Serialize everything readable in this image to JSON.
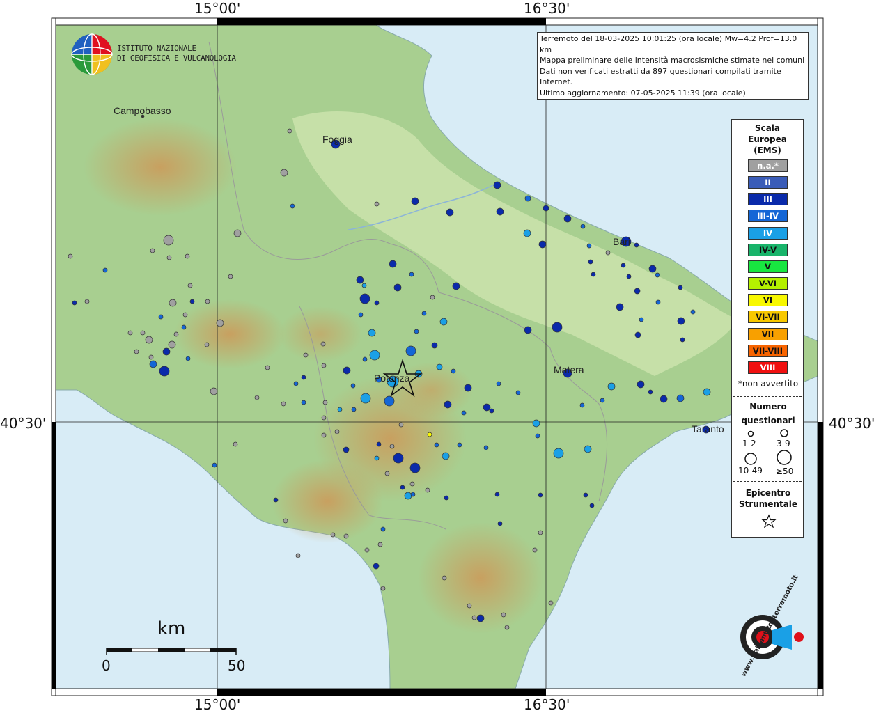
{
  "coordinates": {
    "top_left": "15°00'",
    "top_right": "16°30'",
    "bottom_left": "15°00'",
    "bottom_right": "16°30'",
    "left": "40°30'",
    "right": "40°30'"
  },
  "institution": {
    "line1": "ISTITUTO NAZIONALE",
    "line2": "DI GEOFISICA E VULCANOLOGIA"
  },
  "info": {
    "line1": "Terremoto del 18-03-2025 10:01:25 (ora locale) Mw=4.2 Prof=13.0 km",
    "line2": "Mappa preliminare delle intensità macrosismiche stimate nei comuni",
    "line3": "Dati non verificati estratti da 897 questionari compilati tramite Internet.",
    "line4": "Ultimo aggiornamento: 07-05-2025 11:39 (ora locale)"
  },
  "cities": [
    {
      "name": "Campobasso"
    },
    {
      "name": "Foggia"
    },
    {
      "name": "Bari"
    },
    {
      "name": "Potenza"
    },
    {
      "name": "Matera"
    },
    {
      "name": "Taranto"
    }
  ],
  "legend": {
    "title1": "Scala",
    "title2": "Europea",
    "title3": "(EMS)",
    "levels": [
      {
        "label": "n.a.*",
        "color": "#a0a0a0",
        "text": "#ffffff"
      },
      {
        "label": "II",
        "color": "#3a5cb8",
        "text": "#ffffff"
      },
      {
        "label": "III",
        "color": "#0a2aaa",
        "text": "#ffffff"
      },
      {
        "label": "III-IV",
        "color": "#1466d6",
        "text": "#ffffff"
      },
      {
        "label": "IV",
        "color": "#1aa0e6",
        "text": "#ffffff"
      },
      {
        "label": "IV-V",
        "color": "#18b46a",
        "text": "#111111"
      },
      {
        "label": "V",
        "color": "#18e640",
        "text": "#111111"
      },
      {
        "label": "V-VI",
        "color": "#b4f000",
        "text": "#111111"
      },
      {
        "label": "VI",
        "color": "#f8f800",
        "text": "#111111"
      },
      {
        "label": "VI-VII",
        "color": "#f8c800",
        "text": "#111111"
      },
      {
        "label": "VII",
        "color": "#f8a000",
        "text": "#111111"
      },
      {
        "label": "VII-VIII",
        "color": "#f86400",
        "text": "#111111"
      },
      {
        "label": "VIII",
        "color": "#f01010",
        "text": "#ffffff"
      }
    ],
    "note": "*non avvertito",
    "number_title1": "Numero",
    "number_title2": "questionari",
    "size_labels": [
      "1-2",
      "3-9",
      "10-49",
      "≥50"
    ],
    "epicenter_title1": "Epicentro",
    "epicenter_title2": "Strumentale"
  },
  "scale_bar": {
    "unit": "km",
    "start": "0",
    "end": "50"
  },
  "watermark": {
    "text": "www.haisentitoilterremoto.it"
  }
}
